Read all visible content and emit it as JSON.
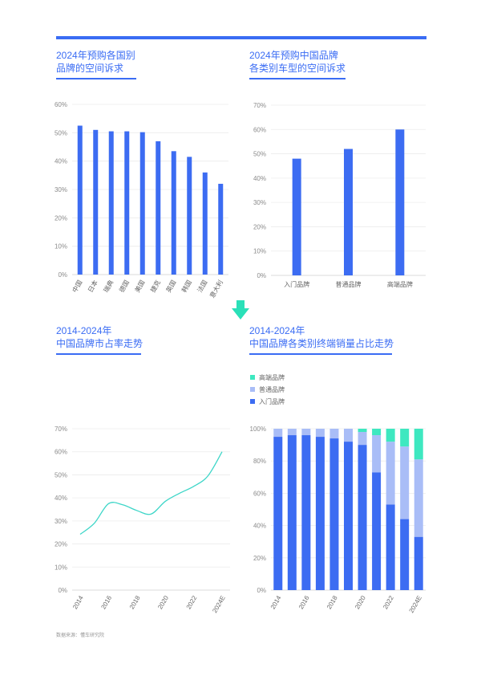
{
  "colors": {
    "accent": "#3a6cf4",
    "bar_blue": "#3c6cf2",
    "light_blue": "#a9bdf7",
    "teal": "#3ee8c0",
    "line_teal": "#3ed6c8",
    "arrow": "#2ae0b8"
  },
  "panels": {
    "p1": {
      "title1": "2024年预购各国别",
      "title2": "品牌的空间诉求"
    },
    "p2": {
      "title1": "2024年预购中国品牌",
      "title2": "各类别车型的空间诉求"
    },
    "p3": {
      "title1": "2014-2024年",
      "title2": "中国品牌市占率走势"
    },
    "p4": {
      "title1": "2014-2024年",
      "title2": "中国品牌各类别终端销量占比走势"
    }
  },
  "source": "数据来源：懂车研究院",
  "chart_data": [
    {
      "type": "bar",
      "categories": [
        "中国",
        "日本",
        "瑞典",
        "德国",
        "美国",
        "捷克",
        "英国",
        "韩国",
        "法国",
        "意大利"
      ],
      "values": [
        52.5,
        51,
        50.5,
        50.5,
        50.2,
        47,
        43.5,
        41.5,
        36,
        32
      ],
      "yticks": [
        "0%",
        "10%",
        "20%",
        "30%",
        "40%",
        "50%",
        "60%"
      ],
      "ylim": [
        0,
        60
      ]
    },
    {
      "type": "bar",
      "categories": [
        "入门品牌",
        "普通品牌",
        "高端品牌"
      ],
      "values": [
        48,
        52,
        60
      ],
      "yticks": [
        "0%",
        "10%",
        "20%",
        "30%",
        "40%",
        "50%",
        "60%",
        "70%"
      ],
      "ylim": [
        0,
        70
      ]
    },
    {
      "type": "line",
      "x": [
        2014,
        2015,
        2016,
        2017,
        2018,
        2019,
        2020,
        2021,
        2022,
        2023,
        2024
      ],
      "values": [
        24.2,
        29,
        37.5,
        37,
        34.5,
        33,
        38.5,
        42,
        45,
        49.5,
        60
      ],
      "xticks": [
        "2014",
        "2016",
        "2018",
        "2020",
        "2022",
        "2024E"
      ],
      "yticks": [
        "0%",
        "10%",
        "20%",
        "30%",
        "40%",
        "50%",
        "60%",
        "70%"
      ],
      "ylim": [
        0,
        70
      ]
    },
    {
      "type": "bar",
      "stacked": true,
      "x": [
        2014,
        2015,
        2016,
        2017,
        2018,
        2019,
        2020,
        2021,
        2022,
        2023,
        2024
      ],
      "xticks": [
        "2014",
        "2016",
        "2018",
        "2020",
        "2022",
        "2024E"
      ],
      "yticks": [
        "0%",
        "20%",
        "40%",
        "60%",
        "80%",
        "100%"
      ],
      "ylim": [
        0,
        100
      ],
      "series": [
        {
          "name": "入门品牌",
          "values": [
            95,
            96,
            96,
            95,
            94,
            92,
            90,
            73,
            53,
            44,
            33
          ]
        },
        {
          "name": "普通品牌",
          "values": [
            5,
            4,
            4,
            5,
            6,
            8,
            8,
            23,
            39,
            45,
            48
          ]
        },
        {
          "name": "高端品牌",
          "values": [
            0,
            0,
            0,
            0,
            0,
            0,
            2,
            4,
            8,
            11,
            19
          ]
        }
      ],
      "legend": [
        "高端品牌",
        "普通品牌",
        "入门品牌"
      ]
    }
  ]
}
